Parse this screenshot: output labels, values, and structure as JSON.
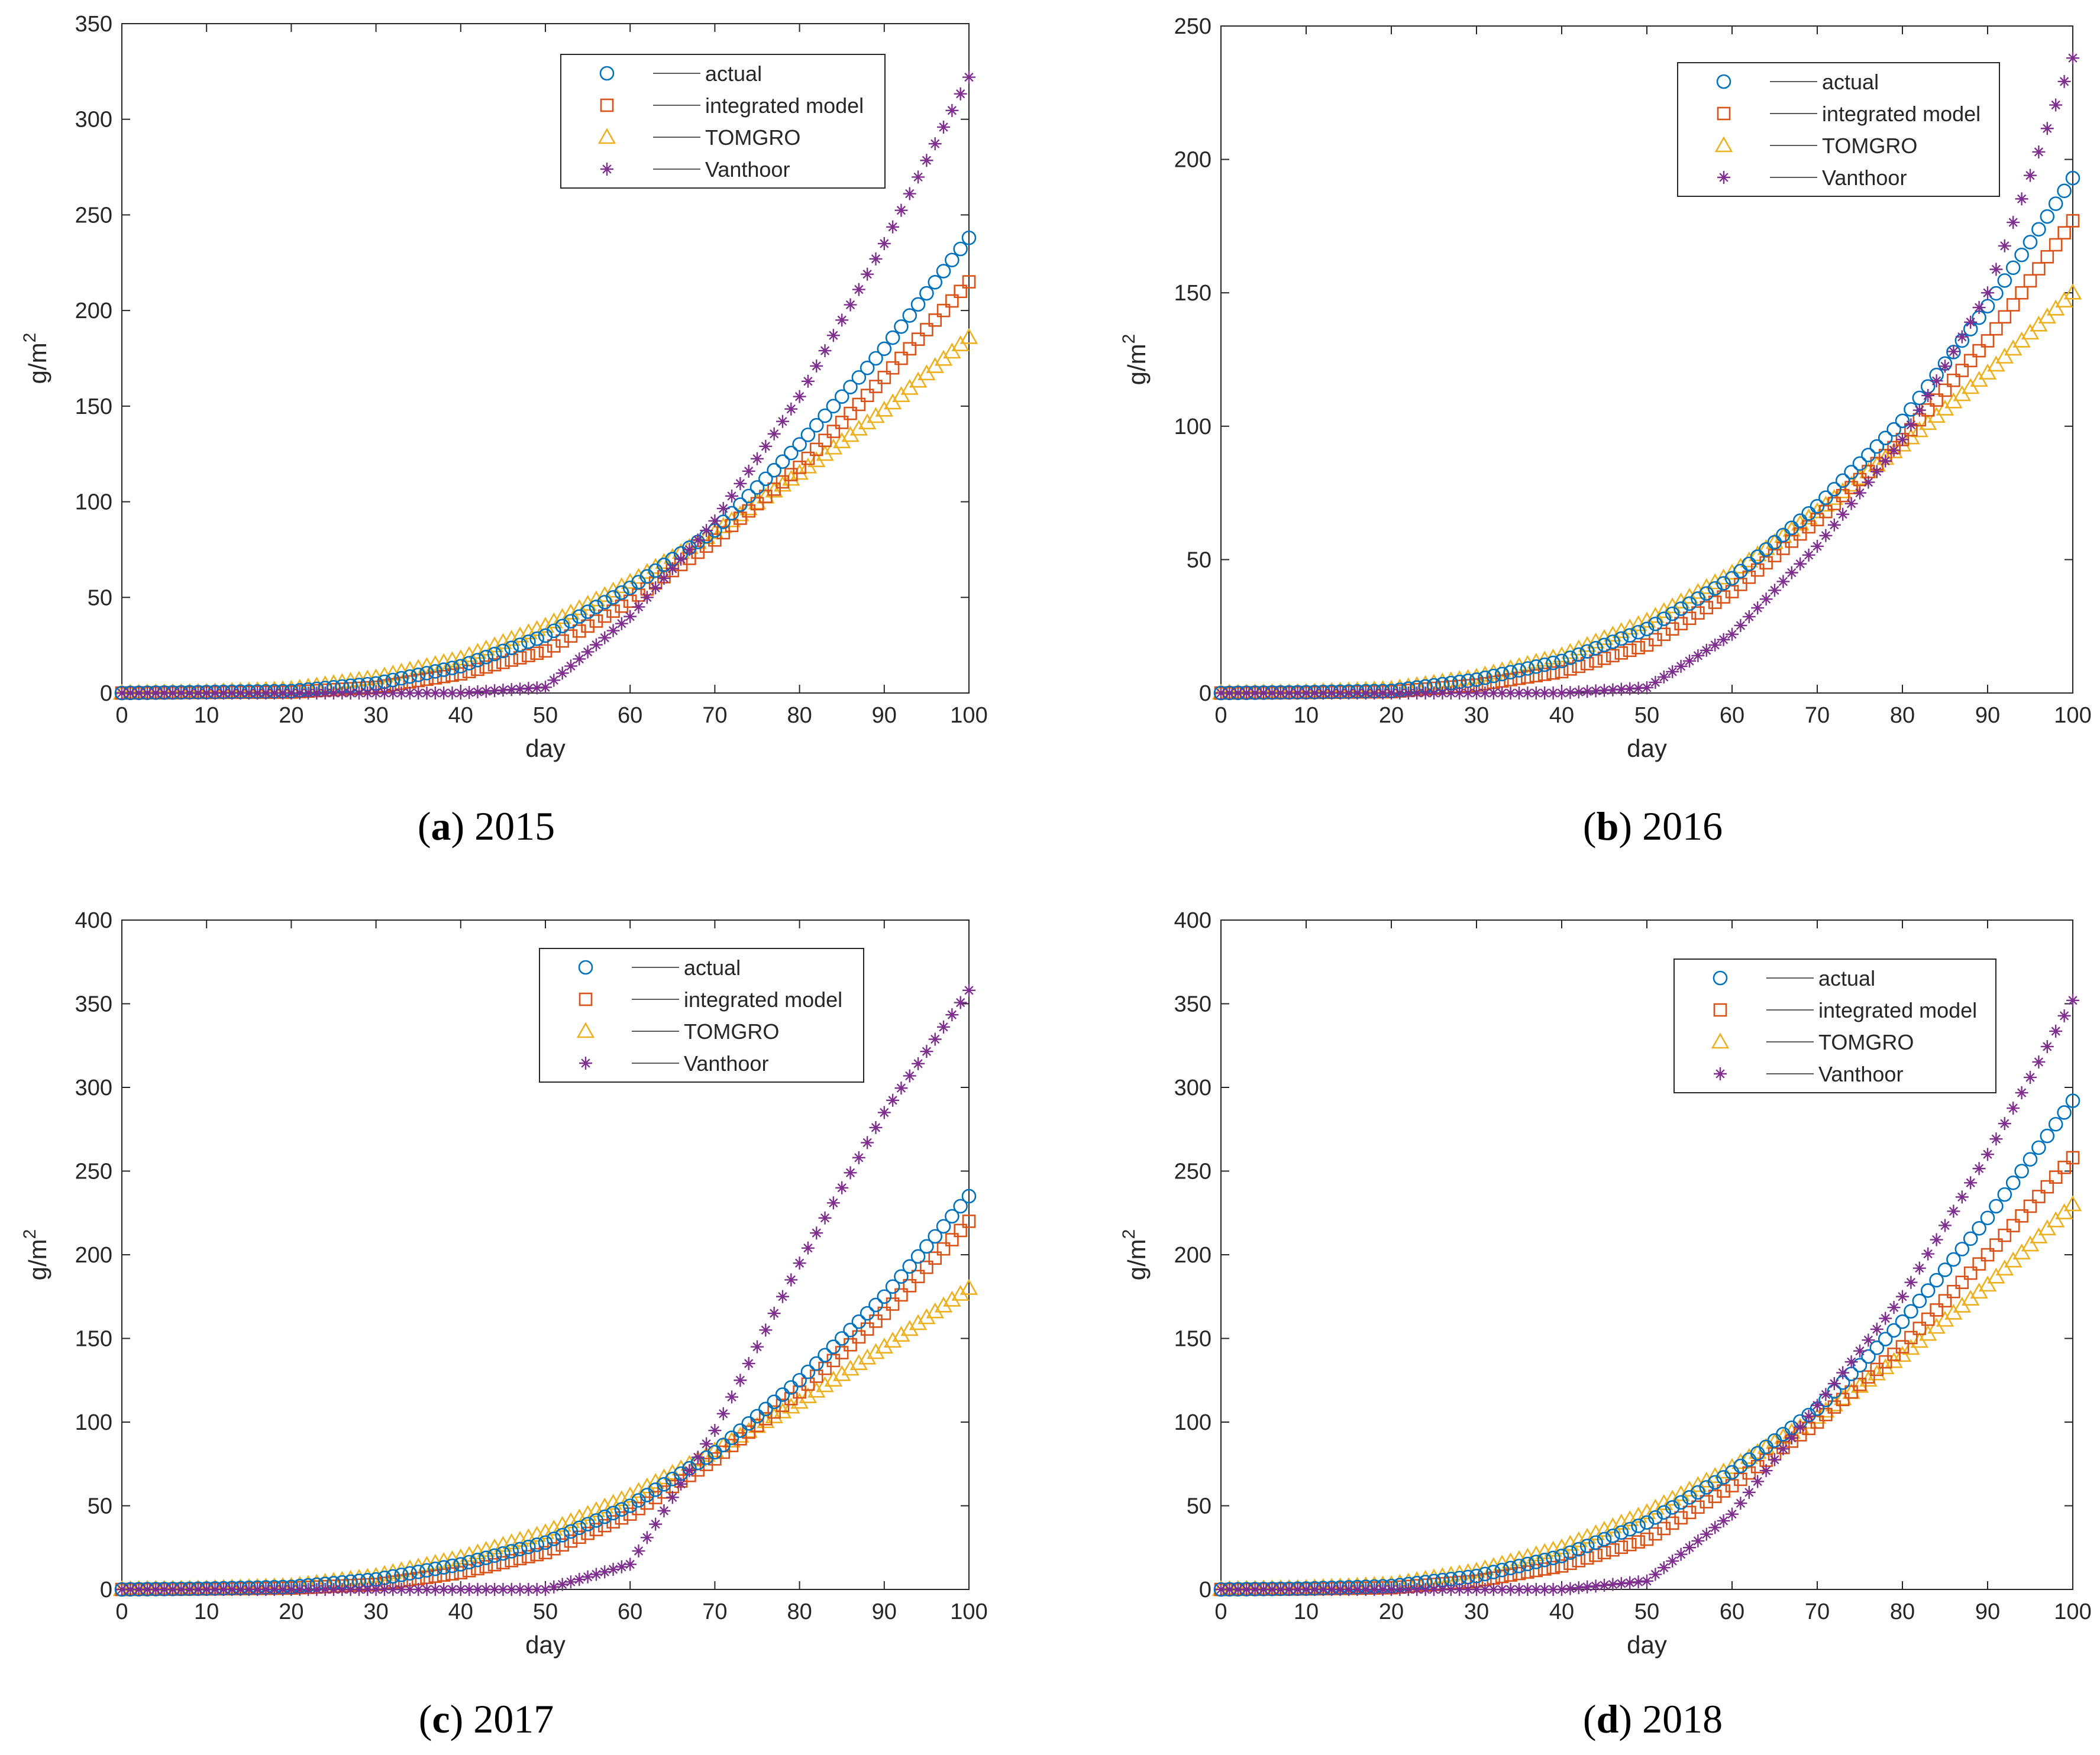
{
  "figure": {
    "series_colors": {
      "actual": "#0072BD",
      "integrated model": "#D95319",
      "TOMGRO": "#EDB120",
      "Vanthoor": "#7E2F8E"
    }
  },
  "chart_data": [
    {
      "type": "scatter",
      "caption_letter": "a",
      "caption_year": "2015",
      "xlabel": "day",
      "ylabel": "g/m",
      "ylabel_superscript": "2",
      "xlim": [
        0,
        100
      ],
      "ylim": [
        0,
        350
      ],
      "xticks": [
        0,
        10,
        20,
        30,
        40,
        50,
        60,
        70,
        80,
        90,
        100
      ],
      "yticks": [
        0,
        50,
        100,
        150,
        200,
        250,
        300,
        350
      ],
      "legend_position": "top-right",
      "legend": [
        "actual",
        "integrated model",
        "TOMGRO",
        "Vanthoor"
      ],
      "x": [
        0,
        10,
        20,
        30,
        40,
        50,
        60,
        70,
        80,
        90,
        100
      ],
      "series": [
        {
          "name": "actual",
          "marker": "circle",
          "values": [
            0,
            0.5,
            1,
            5,
            14,
            30,
            55,
            85,
            130,
            180,
            238
          ]
        },
        {
          "name": "integrated model",
          "marker": "square",
          "values": [
            0,
            0.3,
            0.5,
            3,
            10,
            22,
            48,
            80,
            118,
            165,
            215
          ]
        },
        {
          "name": "TOMGRO",
          "marker": "triangle",
          "values": [
            0,
            0.5,
            2,
            8,
            18,
            35,
            58,
            84,
            115,
            148,
            186
          ]
        },
        {
          "name": "Vanthoor",
          "marker": "asterisk",
          "values": [
            0,
            0,
            0,
            0,
            0,
            3,
            40,
            90,
            155,
            235,
            322
          ]
        }
      ]
    },
    {
      "type": "scatter",
      "caption_letter": "b",
      "caption_year": "2016",
      "xlabel": "day",
      "ylabel": "g/m",
      "ylabel_superscript": "2",
      "xlim": [
        0,
        100
      ],
      "ylim": [
        0,
        250
      ],
      "xticks": [
        0,
        10,
        20,
        30,
        40,
        50,
        60,
        70,
        80,
        90,
        100
      ],
      "yticks": [
        0,
        50,
        100,
        150,
        200,
        250
      ],
      "legend_position": "top-right",
      "legend": [
        "actual",
        "integrated model",
        "TOMGRO",
        "Vanthoor"
      ],
      "x": [
        0,
        10,
        20,
        30,
        40,
        50,
        60,
        70,
        80,
        90,
        100
      ],
      "series": [
        {
          "name": "actual",
          "marker": "circle",
          "values": [
            0,
            0.3,
            0.8,
            5,
            12,
            24,
            43,
            70,
            102,
            145,
            193
          ]
        },
        {
          "name": "integrated model",
          "marker": "square",
          "values": [
            0,
            0.2,
            0.5,
            3,
            8,
            18,
            38,
            65,
            95,
            132,
            177
          ]
        },
        {
          "name": "TOMGRO",
          "marker": "triangle",
          "values": [
            0,
            0.3,
            1.5,
            6,
            14,
            27,
            45,
            68,
            93,
            120,
            150
          ]
        },
        {
          "name": "Vanthoor",
          "marker": "asterisk",
          "values": [
            0,
            0,
            0,
            0,
            0,
            2,
            22,
            55,
            95,
            150,
            238
          ]
        }
      ]
    },
    {
      "type": "scatter",
      "caption_letter": "c",
      "caption_year": "2017",
      "xlabel": "day",
      "ylabel": "g/m",
      "ylabel_superscript": "2",
      "xlim": [
        0,
        100
      ],
      "ylim": [
        0,
        400
      ],
      "xticks": [
        0,
        10,
        20,
        30,
        40,
        50,
        60,
        70,
        80,
        90,
        100
      ],
      "yticks": [
        0,
        50,
        100,
        150,
        200,
        250,
        300,
        350,
        400
      ],
      "legend_position": "top-right",
      "legend": [
        "actual",
        "integrated model",
        "TOMGRO",
        "Vanthoor"
      ],
      "x": [
        0,
        10,
        20,
        30,
        40,
        50,
        60,
        70,
        80,
        90,
        100
      ],
      "series": [
        {
          "name": "actual",
          "marker": "circle",
          "values": [
            0,
            0.5,
            1.5,
            6,
            15,
            28,
            50,
            82,
            125,
            175,
            235
          ]
        },
        {
          "name": "integrated model",
          "marker": "square",
          "values": [
            0,
            0.3,
            0.8,
            3,
            10,
            22,
            45,
            78,
            118,
            165,
            220
          ]
        },
        {
          "name": "TOMGRO",
          "marker": "triangle",
          "values": [
            0,
            0.5,
            2,
            8,
            19,
            34,
            56,
            83,
            112,
            145,
            180
          ]
        },
        {
          "name": "Vanthoor",
          "marker": "asterisk",
          "values": [
            0,
            0,
            0,
            0,
            0,
            0,
            15,
            95,
            195,
            285,
            358
          ]
        }
      ]
    },
    {
      "type": "scatter",
      "caption_letter": "d",
      "caption_year": "2018",
      "xlabel": "day",
      "ylabel": "g/m",
      "ylabel_superscript": "2",
      "xlim": [
        0,
        100
      ],
      "ylim": [
        0,
        400
      ],
      "xticks": [
        0,
        10,
        20,
        30,
        40,
        50,
        60,
        70,
        80,
        90,
        100
      ],
      "yticks": [
        0,
        50,
        100,
        150,
        200,
        250,
        300,
        350,
        400
      ],
      "legend_position": "top-right",
      "legend": [
        "actual",
        "integrated model",
        "TOMGRO",
        "Vanthoor"
      ],
      "x": [
        0,
        10,
        20,
        30,
        40,
        50,
        60,
        70,
        80,
        90,
        100
      ],
      "series": [
        {
          "name": "actual",
          "marker": "circle",
          "values": [
            0,
            0.5,
            2,
            8,
            20,
            40,
            70,
            108,
            160,
            222,
            292
          ]
        },
        {
          "name": "integrated model",
          "marker": "square",
          "values": [
            0,
            0.3,
            1,
            5,
            14,
            30,
            62,
            100,
            145,
            200,
            258
          ]
        },
        {
          "name": "TOMGRO",
          "marker": "triangle",
          "values": [
            0,
            0.8,
            3,
            11,
            25,
            46,
            73,
            103,
            140,
            182,
            230
          ]
        },
        {
          "name": "Vanthoor",
          "marker": "asterisk",
          "values": [
            0,
            0,
            0,
            0,
            0,
            5,
            45,
            110,
            175,
            260,
            352
          ]
        }
      ]
    }
  ]
}
